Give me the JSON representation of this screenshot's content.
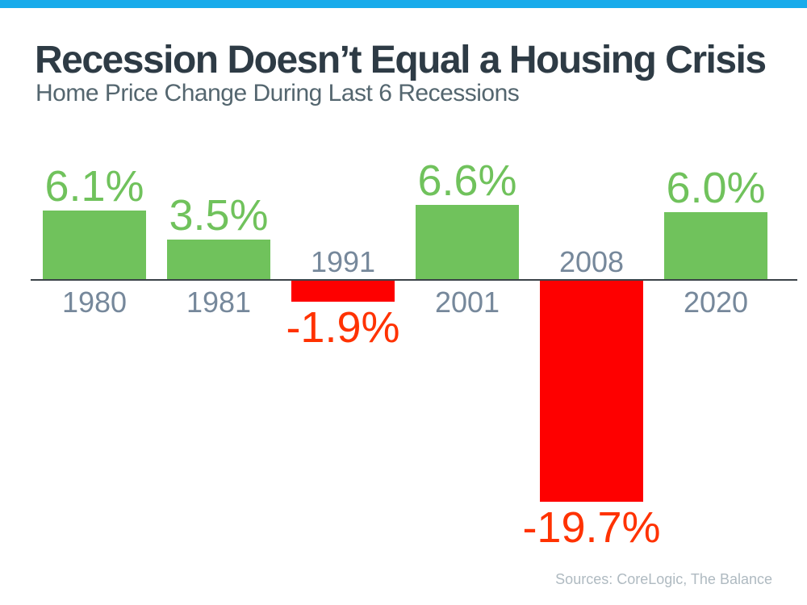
{
  "page": {
    "top_bar_color": "#18ABEB",
    "background": "#FFFFFF"
  },
  "header": {
    "title": "Recession Doesn’t Equal a Housing Crisis",
    "subtitle": "Home Price Change During Last 6 Recessions",
    "title_color": "#2E3B45",
    "subtitle_color": "#54666F"
  },
  "footer": {
    "sources": "Sources: CoreLogic, The Balance",
    "color": "#AFBAC1"
  },
  "chart_data": {
    "type": "bar",
    "title": "Recession Doesn’t Equal a Housing Crisis",
    "subtitle": "Home Price Change During Last 6 Recessions",
    "categories": [
      "1980",
      "1981",
      "1991",
      "2001",
      "2008",
      "2020"
    ],
    "values": [
      6.1,
      3.5,
      -1.9,
      6.6,
      -19.7,
      6.0
    ],
    "value_labels": [
      "6.1%",
      "3.5%",
      "-1.9%",
      "6.6%",
      "-19.7%",
      "6.0%"
    ],
    "xlabel": "",
    "ylabel": "",
    "ylim": [
      -22,
      8
    ],
    "grid": false,
    "legend": false,
    "colors": {
      "positive_bar": "#70C25C",
      "negative_bar": "#FE0000",
      "positive_label": "#70C25C",
      "negative_label": "#FF3200",
      "category_label": "#76889B",
      "axis_line": "#3B4248"
    },
    "source_note": "Sources: CoreLogic, The Balance"
  }
}
